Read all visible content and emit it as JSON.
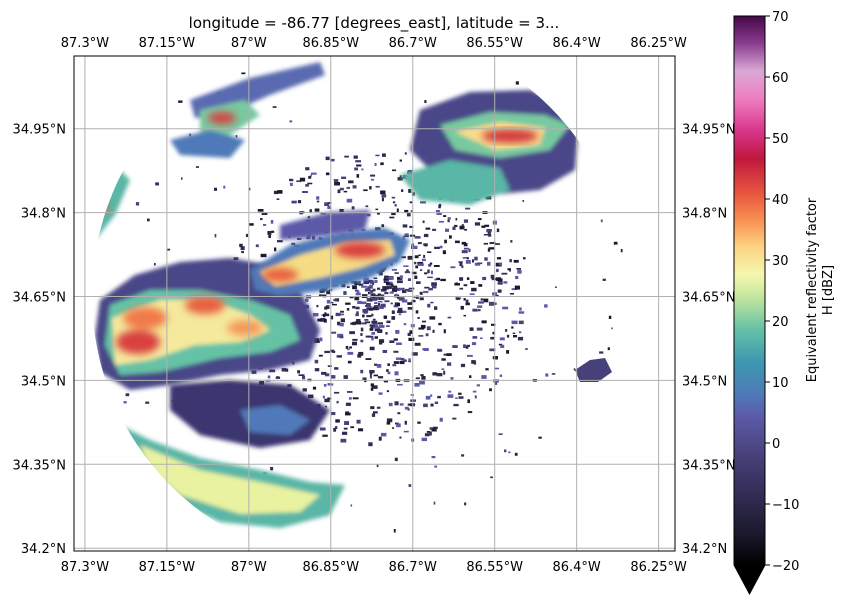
{
  "chart_data": {
    "type": "heatmap",
    "title": "longitude = -86.77 [degrees_east], latitude = 3...",
    "x_ticks": [
      "87.3°W",
      "87.15°W",
      "87°W",
      "86.85°W",
      "86.7°W",
      "86.55°W",
      "86.4°W",
      "86.25°W"
    ],
    "x_tick_values": [
      -87.3,
      -87.15,
      -87.0,
      -86.85,
      -86.7,
      -86.55,
      -86.4,
      -86.25
    ],
    "y_ticks": [
      "34.2°N",
      "34.35°N",
      "34.5°N",
      "34.65°N",
      "34.8°N",
      "34.95°N"
    ],
    "y_tick_values": [
      34.2,
      34.35,
      34.5,
      34.65,
      34.8,
      34.95
    ],
    "xlim": [
      -87.32,
      -86.22
    ],
    "ylim": [
      34.195,
      35.08
    ],
    "grid": true,
    "colorbar": {
      "label_line1": "Equivalent reflectivity factor",
      "label_line2": "H [dBZ]",
      "ticks": [
        "70",
        "60",
        "50",
        "40",
        "30",
        "20",
        "10",
        "0",
        "−10",
        "−20"
      ],
      "tick_values": [
        70,
        60,
        50,
        40,
        30,
        20,
        10,
        0,
        -10,
        -20
      ],
      "range": [
        -20,
        70
      ],
      "extend": "min",
      "colormap": "Spectral_r-like"
    },
    "radar_center": {
      "lon": -86.77,
      "lat": 34.65
    },
    "echo_regions": [
      {
        "lon": -87.2,
        "lat": 34.6,
        "dbz": 35
      },
      {
        "lon": -87.08,
        "lat": 34.64,
        "dbz": 30
      },
      {
        "lon": -86.9,
        "lat": 34.72,
        "dbz": 33
      },
      {
        "lon": -86.8,
        "lat": 34.74,
        "dbz": 38
      },
      {
        "lon": -86.5,
        "lat": 34.96,
        "dbz": 40
      },
      {
        "lon": -87.05,
        "lat": 34.97,
        "dbz": 38
      },
      {
        "lon": -87.25,
        "lat": 34.81,
        "dbz": 30
      },
      {
        "lon": -87.05,
        "lat": 34.28,
        "dbz": 20
      },
      {
        "lon": -86.5,
        "lat": 34.88,
        "dbz": 15
      },
      {
        "lon": -86.95,
        "lat": 34.46,
        "dbz": 2
      },
      {
        "lon": -86.7,
        "lat": 34.6,
        "dbz": -5
      }
    ]
  }
}
